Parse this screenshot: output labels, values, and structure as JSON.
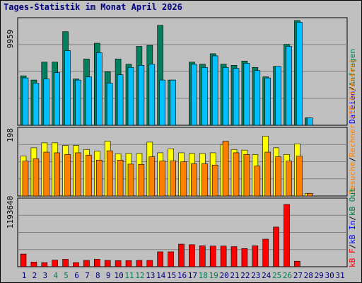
{
  "title": "Tages-Statistik im Monat April 2026",
  "colors": {
    "anfragen": "#00805c",
    "dateien": "#00c0ff",
    "rechner": "#ffff00",
    "besuche": "#ff8000",
    "kb_in": "#008040",
    "kb_out": "#0000ff",
    "kb_f": "#ff0000",
    "grid": "#808080",
    "weekend": "#00805c",
    "weekday": "#000080"
  },
  "legend": {
    "top": {
      "anfragen": "Anfragen",
      "dateien": "Dateien"
    },
    "middle": {
      "rechner": "Rechner (IP-Adressen)",
      "besuche": "Besuche"
    },
    "bottom": {
      "kb_f": "kB F",
      "kb_in": "kB In",
      "kb_out": "kB Out"
    },
    "sep": "/"
  },
  "chart_data": {
    "type": "bar",
    "categories": [
      "1",
      "2",
      "3",
      "4",
      "5",
      "6",
      "7",
      "8",
      "9",
      "10",
      "11",
      "12",
      "13",
      "14",
      "15",
      "16",
      "17",
      "18",
      "19",
      "20",
      "21",
      "22",
      "23",
      "24",
      "25",
      "26",
      "27",
      "28",
      "29",
      "30",
      "31"
    ],
    "weekend_days": [
      "4",
      "5",
      "11",
      "12",
      "18",
      "19",
      "25",
      "26"
    ],
    "panels": [
      {
        "id": "top",
        "ymax_label": "9959",
        "ymax": 9959,
        "series": [
          {
            "name": "Anfragen",
            "values": [
              4700,
              4300,
              6000,
              6000,
              8900,
              4400,
              6300,
              7800,
              5100,
              6300,
              5800,
              7500,
              7600,
              9500,
              4300,
              0,
              6000,
              5800,
              6800,
              5800,
              5700,
              6100,
              5500,
              4600,
              5600,
              7700,
              9959,
              700,
              0,
              0,
              0
            ]
          },
          {
            "name": "Dateien",
            "values": [
              4500,
              4000,
              4400,
              5000,
              7100,
              4300,
              4600,
              6900,
              4000,
              4800,
              5500,
              5700,
              5800,
              4300,
              4300,
              0,
              5800,
              5500,
              6600,
              5500,
              5400,
              5900,
              5200,
              4500,
              5600,
              7500,
              9800,
              700,
              0,
              0,
              0
            ]
          }
        ]
      },
      {
        "id": "middle",
        "ymax_label": "198",
        "ymax": 198,
        "series": [
          {
            "name": "Rechner",
            "values": [
              120,
              145,
              160,
              160,
              152,
              152,
              140,
              135,
              165,
              127,
              128,
              128,
              162,
              130,
              142,
              130,
              128,
              128,
              130,
              155,
              140,
              138,
              125,
              180,
              145,
              125,
              157,
              8,
              0,
              0,
              0
            ]
          },
          {
            "name": "Besuche",
            "values": [
              105,
              112,
              132,
              130,
              125,
              130,
              123,
              108,
              136,
              108,
              96,
              95,
              118,
              105,
              106,
              103,
              97,
              97,
              93,
              165,
              130,
              125,
              90,
              132,
              118,
              105,
              120,
              8,
              0,
              0,
              0
            ]
          }
        ]
      },
      {
        "id": "bottom",
        "ymax_label": "1193640",
        "ymax": 1193640,
        "series": [
          {
            "name": "kB F",
            "values": [
              230000,
              85000,
              75000,
              120000,
              135000,
              75000,
              115000,
              135000,
              115000,
              110000,
              110000,
              115000,
              115000,
              270000,
              270000,
              410000,
              400000,
              380000,
              375000,
              375000,
              365000,
              330000,
              380000,
              500000,
              720000,
              1130000,
              100000,
              0,
              0,
              0,
              0
            ]
          },
          {
            "name": "kB In",
            "values": [
              0,
              0,
              0,
              0,
              0,
              0,
              0,
              0,
              0,
              0,
              0,
              0,
              0,
              0,
              0,
              0,
              0,
              0,
              0,
              0,
              0,
              0,
              0,
              0,
              0,
              0,
              0,
              0,
              0,
              0,
              0
            ]
          },
          {
            "name": "kB Out",
            "values": [
              0,
              0,
              0,
              0,
              0,
              0,
              0,
              0,
              0,
              0,
              0,
              0,
              0,
              0,
              0,
              0,
              0,
              0,
              0,
              0,
              0,
              0,
              0,
              0,
              0,
              0,
              0,
              0,
              0,
              0,
              0
            ]
          }
        ]
      }
    ]
  }
}
